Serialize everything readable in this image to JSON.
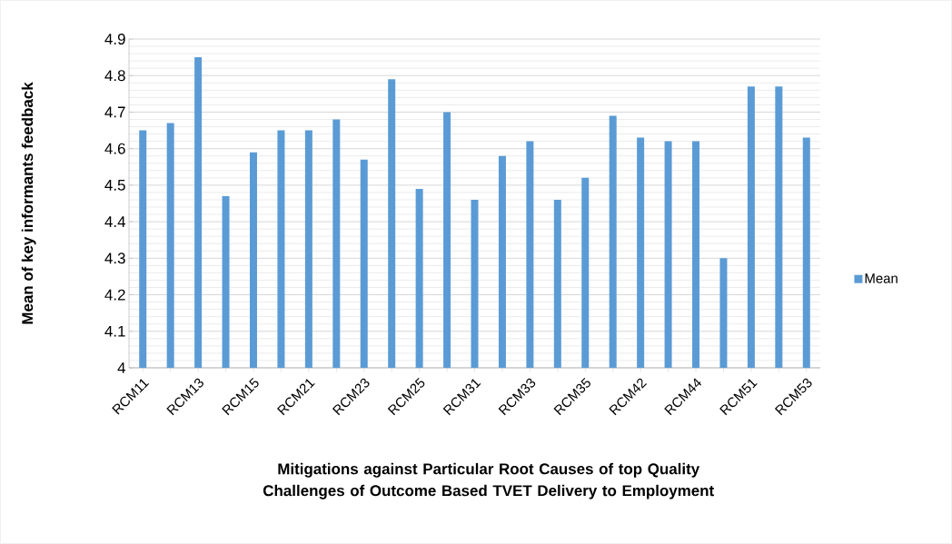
{
  "chart_data": {
    "type": "bar",
    "xlabel": "Mitigations against Particular Root Causes of top Quality Challenges of Outcome Based TVET Delivery to Employment",
    "ylabel": "Mean of key informants feedback",
    "categories": [
      "RCM11",
      null,
      "RCM13",
      null,
      "RCM15",
      null,
      "RCM21",
      null,
      "RCM23",
      null,
      "RCM25",
      null,
      "RCM31",
      null,
      "RCM33",
      null,
      "RCM35",
      null,
      "RCM42",
      null,
      "RCM44",
      null,
      "RCM51",
      null,
      "RCM53"
    ],
    "series": [
      {
        "name": "Mean",
        "color": "#5b9bd5",
        "values": [
          4.65,
          4.67,
          4.85,
          4.47,
          4.59,
          4.65,
          4.65,
          4.68,
          4.57,
          4.79,
          4.49,
          4.7,
          4.46,
          4.58,
          4.62,
          4.46,
          4.52,
          4.69,
          4.63,
          4.62,
          4.62,
          4.3,
          4.77,
          4.77,
          4.63
        ]
      }
    ],
    "ylim": [
      4,
      4.9
    ],
    "yticks": [
      4,
      4.1,
      4.2,
      4.3,
      4.4,
      4.5,
      4.6,
      4.7,
      4.8,
      4.9
    ],
    "grid": "y",
    "legend": "right"
  }
}
